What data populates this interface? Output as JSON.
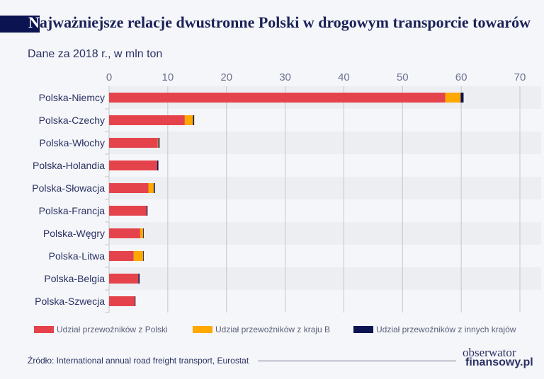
{
  "header": {
    "title_first_letter": "N",
    "title_rest": "ajważniejsze relacje dwustronne Polski w drogowym transporcie towarów",
    "subtitle": "Dane za 2018 r., w mln ton"
  },
  "chart_data": {
    "type": "bar",
    "orientation": "horizontal",
    "stacked": true,
    "title": "Najważniejsze relacje dwustronne Polski w drogowym transporcie towarów",
    "subtitle": "Dane za 2018 r., w mln ton",
    "categories": [
      "Polska-Niemcy",
      "Polska-Czechy",
      "Polska-Włochy",
      "Polska-Holandia",
      "Polska-Słowacja",
      "Polska-Francja",
      "Polska-Węgry",
      "Polska-Litwa",
      "Polska-Belgia",
      "Polska-Szwecja"
    ],
    "series": [
      {
        "name": "Udział przewoźników z Polski",
        "color": "#e5434b",
        "values": [
          57.3,
          12.9,
          8.3,
          8.2,
          6.7,
          6.4,
          5.3,
          4.2,
          5.0,
          4.4
        ]
      },
      {
        "name": "Udział przewoźników z kraju B",
        "color": "#ffa800",
        "values": [
          2.6,
          1.4,
          0.1,
          0.0,
          0.9,
          0.0,
          0.5,
          1.6,
          0.0,
          0.0
        ]
      },
      {
        "name": "Udział przewoźników z innych krajów",
        "color": "#0b1450",
        "values": [
          0.5,
          0.2,
          0.2,
          0.2,
          0.2,
          0.15,
          0.1,
          0.1,
          0.2,
          0.1
        ]
      }
    ],
    "xlim": [
      0,
      70
    ],
    "xticks": [
      "0",
      "10",
      "20",
      "30",
      "40",
      "50",
      "60",
      "70"
    ],
    "axis_position": "top",
    "grid": true,
    "legend_position": "bottom"
  },
  "footer": {
    "source": "Źródło: International annual road freight transport, Eurostat",
    "logo_line1": "obserwator",
    "logo_line2": "finansowy.pl"
  }
}
